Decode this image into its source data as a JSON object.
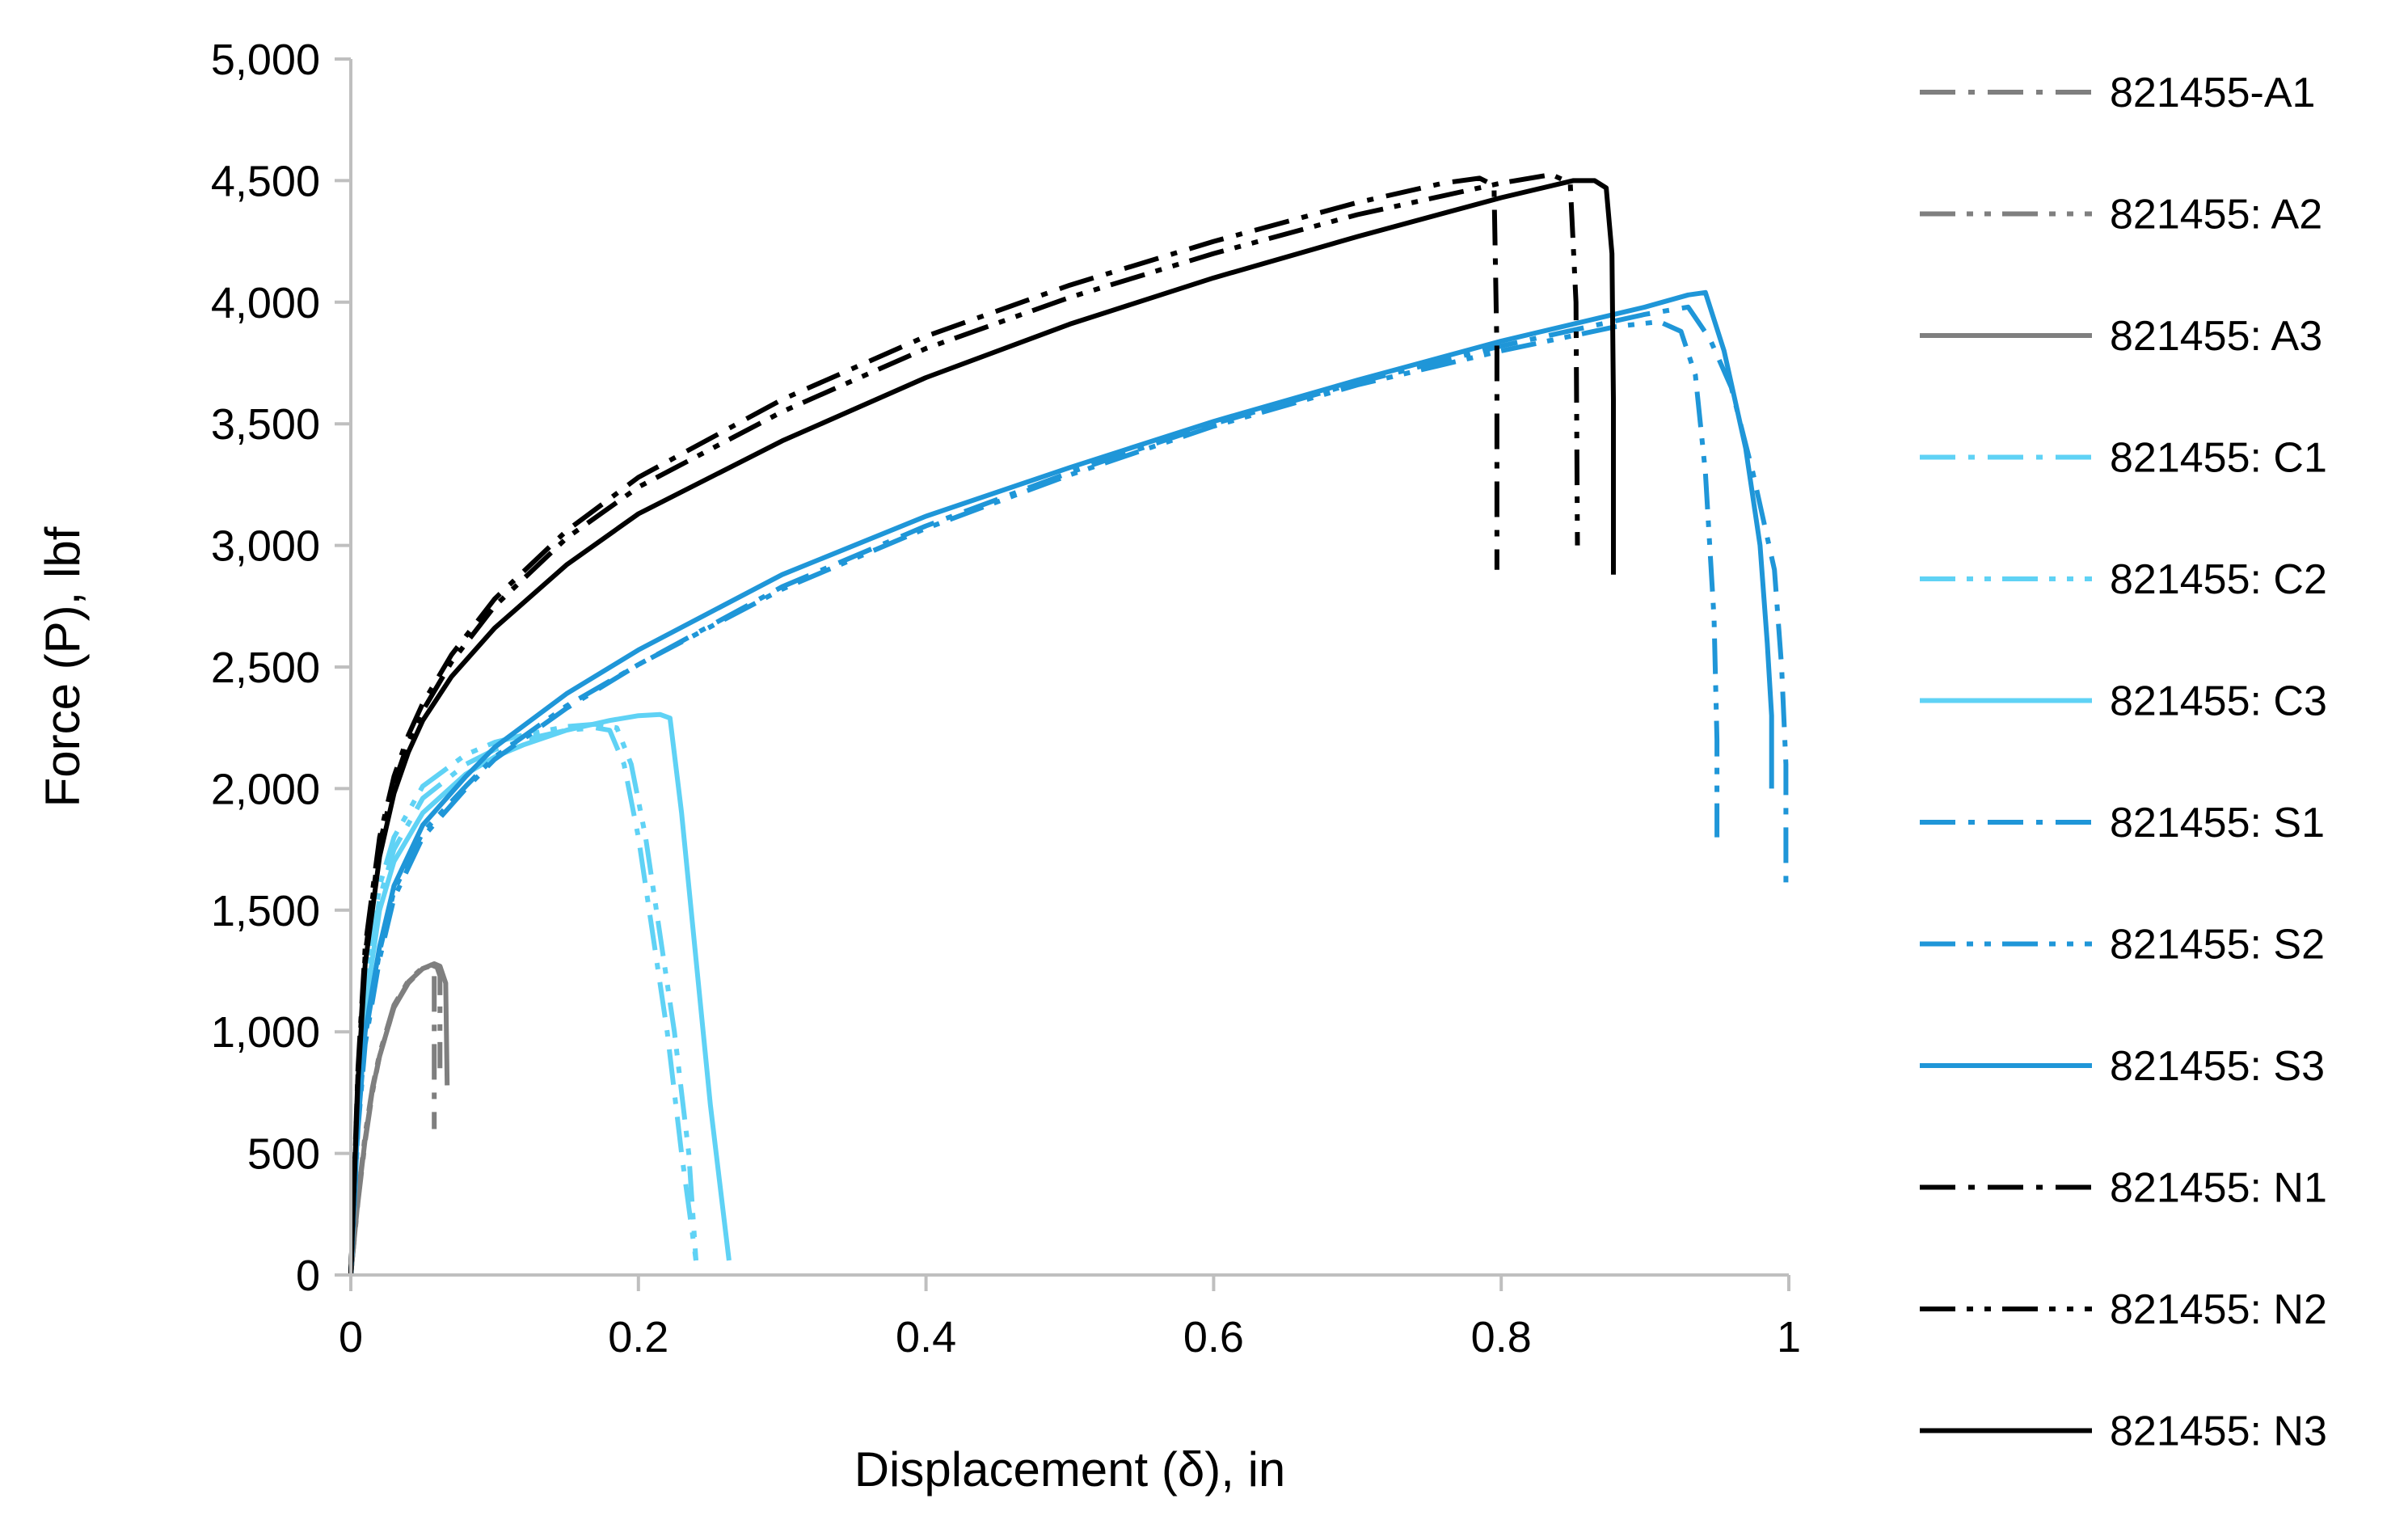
{
  "chart_data": {
    "type": "line",
    "title": "",
    "xlabel": "Displacement (δ), in",
    "ylabel": "Force (P), lbf",
    "xlim": [
      0,
      1
    ],
    "ylim": [
      0,
      5000
    ],
    "x_ticks": [
      0,
      0.2,
      0.4,
      0.6,
      0.8,
      1
    ],
    "x_tick_labels": [
      "0",
      "0.2",
      "0.4",
      "0.6",
      "0.8",
      "1"
    ],
    "y_ticks": [
      0,
      500,
      1000,
      1500,
      2000,
      2500,
      3000,
      3500,
      4000,
      4500,
      5000
    ],
    "y_tick_labels": [
      "0",
      "500",
      "1,000",
      "1,500",
      "2,000",
      "2,500",
      "3,000",
      "3,500",
      "4,000",
      "4,500",
      "5,000"
    ],
    "grid": false,
    "legend_position": "right",
    "series": [
      {
        "name": "821455-A1",
        "color": "#7f7f7f",
        "dash": "dash-dot",
        "x": [
          0,
          0.005,
          0.01,
          0.015,
          0.02,
          0.03,
          0.04,
          0.05,
          0.055,
          0.058,
          0.058
        ],
        "y": [
          0,
          300,
          550,
          750,
          900,
          1100,
          1200,
          1260,
          1270,
          1250,
          600
        ]
      },
      {
        "name": "821455: A2",
        "color": "#7f7f7f",
        "dash": "dash-dot-dot",
        "x": [
          0,
          0.005,
          0.01,
          0.015,
          0.02,
          0.03,
          0.04,
          0.05,
          0.056,
          0.06,
          0.062,
          0.062
        ],
        "y": [
          0,
          320,
          580,
          770,
          910,
          1110,
          1210,
          1265,
          1275,
          1265,
          1230,
          850
        ]
      },
      {
        "name": "821455: A3",
        "color": "#7f7f7f",
        "dash": "solid",
        "x": [
          0,
          0.005,
          0.01,
          0.015,
          0.02,
          0.03,
          0.04,
          0.05,
          0.058,
          0.062,
          0.066,
          0.067
        ],
        "y": [
          0,
          310,
          560,
          760,
          900,
          1100,
          1205,
          1260,
          1280,
          1270,
          1200,
          780
        ]
      },
      {
        "name": "821455: C1",
        "color": "#5fd2f5",
        "dash": "dash-dot",
        "x": [
          0,
          0.005,
          0.01,
          0.02,
          0.03,
          0.05,
          0.08,
          0.1,
          0.12,
          0.15,
          0.17,
          0.18,
          0.19,
          0.2,
          0.21,
          0.22,
          0.23,
          0.24
        ],
        "y": [
          0,
          700,
          1150,
          1550,
          1750,
          1960,
          2100,
          2160,
          2200,
          2240,
          2250,
          2240,
          2100,
          1800,
          1400,
          1000,
          500,
          60
        ]
      },
      {
        "name": "821455: C2",
        "color": "#5fd2f5",
        "dash": "dash-dot-dot",
        "x": [
          0,
          0.005,
          0.01,
          0.02,
          0.03,
          0.05,
          0.08,
          0.1,
          0.12,
          0.15,
          0.17,
          0.185,
          0.195,
          0.205,
          0.215,
          0.225,
          0.235,
          0.24
        ],
        "y": [
          0,
          750,
          1200,
          1600,
          1800,
          2010,
          2140,
          2190,
          2220,
          2255,
          2265,
          2250,
          2100,
          1800,
          1400,
          1000,
          500,
          60
        ]
      },
      {
        "name": "821455: C3",
        "color": "#5fd2f5",
        "dash": "solid",
        "x": [
          0,
          0.005,
          0.01,
          0.02,
          0.03,
          0.05,
          0.08,
          0.1,
          0.12,
          0.15,
          0.18,
          0.2,
          0.215,
          0.222,
          0.23,
          0.24,
          0.25,
          0.263
        ],
        "y": [
          0,
          680,
          1100,
          1500,
          1700,
          1900,
          2060,
          2130,
          2180,
          2240,
          2280,
          2300,
          2305,
          2290,
          1900,
          1300,
          700,
          60
        ]
      },
      {
        "name": "821455: S1",
        "color": "#1f96d8",
        "dash": "dash-dot",
        "x": [
          0,
          0.005,
          0.01,
          0.02,
          0.03,
          0.05,
          0.08,
          0.1,
          0.15,
          0.2,
          0.3,
          0.4,
          0.5,
          0.6,
          0.7,
          0.8,
          0.9,
          0.93,
          0.945,
          0.96,
          0.975,
          0.99,
          0.995,
          0.998,
          0.998
        ],
        "y": [
          0,
          600,
          950,
          1300,
          1550,
          1800,
          2000,
          2120,
          2330,
          2510,
          2830,
          3080,
          3300,
          3500,
          3670,
          3820,
          3950,
          3980,
          3850,
          3650,
          3300,
          2900,
          2500,
          2100,
          1600
        ]
      },
      {
        "name": "821455: S2",
        "color": "#1f96d8",
        "dash": "dash-dot-dot",
        "x": [
          0,
          0.005,
          0.01,
          0.02,
          0.03,
          0.05,
          0.08,
          0.1,
          0.15,
          0.2,
          0.3,
          0.4,
          0.5,
          0.6,
          0.7,
          0.8,
          0.88,
          0.91,
          0.925,
          0.935,
          0.942,
          0.948,
          0.95,
          0.95
        ],
        "y": [
          0,
          620,
          980,
          1330,
          1580,
          1820,
          2010,
          2130,
          2340,
          2510,
          2820,
          3070,
          3290,
          3490,
          3660,
          3800,
          3900,
          3920,
          3880,
          3700,
          3300,
          2700,
          2200,
          1800
        ]
      },
      {
        "name": "821455: S3",
        "color": "#1f96d8",
        "dash": "solid",
        "x": [
          0,
          0.005,
          0.01,
          0.02,
          0.03,
          0.05,
          0.08,
          0.1,
          0.15,
          0.2,
          0.3,
          0.4,
          0.5,
          0.6,
          0.7,
          0.8,
          0.9,
          0.93,
          0.942,
          0.955,
          0.97,
          0.98,
          0.985,
          0.988,
          0.988
        ],
        "y": [
          0,
          650,
          1000,
          1350,
          1600,
          1850,
          2050,
          2170,
          2390,
          2570,
          2880,
          3120,
          3320,
          3510,
          3680,
          3840,
          3980,
          4030,
          4040,
          3800,
          3400,
          3000,
          2600,
          2300,
          2000
        ]
      },
      {
        "name": "821455: N1",
        "color": "#000000",
        "dash": "dash-dot",
        "x": [
          0,
          0.005,
          0.01,
          0.02,
          0.03,
          0.04,
          0.05,
          0.07,
          0.1,
          0.15,
          0.2,
          0.3,
          0.4,
          0.5,
          0.6,
          0.7,
          0.76,
          0.785,
          0.795,
          0.797,
          0.797
        ],
        "y": [
          0,
          850,
          1350,
          1800,
          2050,
          2220,
          2350,
          2550,
          2780,
          3060,
          3280,
          3600,
          3860,
          4070,
          4250,
          4410,
          4490,
          4510,
          4480,
          3800,
          2900
        ]
      },
      {
        "name": "821455: N2",
        "color": "#000000",
        "dash": "dash-dot-dot",
        "x": [
          0,
          0.005,
          0.01,
          0.02,
          0.03,
          0.04,
          0.05,
          0.07,
          0.1,
          0.15,
          0.2,
          0.3,
          0.4,
          0.5,
          0.6,
          0.7,
          0.8,
          0.835,
          0.848,
          0.852,
          0.853
        ],
        "y": [
          0,
          830,
          1320,
          1770,
          2020,
          2190,
          2320,
          2520,
          2750,
          3030,
          3240,
          3550,
          3810,
          4020,
          4200,
          4360,
          4490,
          4525,
          4490,
          4000,
          3000
        ]
      },
      {
        "name": "821455: N3",
        "color": "#000000",
        "dash": "solid",
        "x": [
          0,
          0.005,
          0.01,
          0.02,
          0.03,
          0.04,
          0.05,
          0.07,
          0.1,
          0.15,
          0.2,
          0.3,
          0.4,
          0.5,
          0.6,
          0.7,
          0.8,
          0.85,
          0.865,
          0.873,
          0.877,
          0.878,
          0.878
        ],
        "y": [
          0,
          800,
          1280,
          1720,
          1980,
          2150,
          2280,
          2460,
          2660,
          2920,
          3130,
          3430,
          3690,
          3910,
          4100,
          4270,
          4430,
          4500,
          4500,
          4470,
          4200,
          3600,
          2880
        ]
      }
    ]
  }
}
